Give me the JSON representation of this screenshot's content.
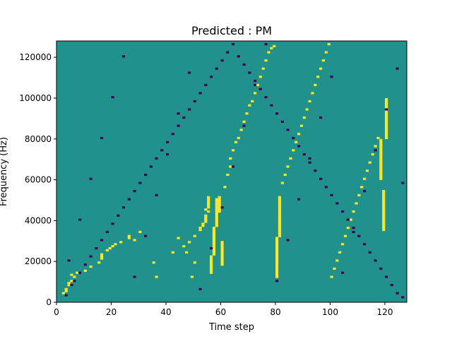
{
  "chart_data": {
    "type": "heatmap",
    "title": "Predicted : PM",
    "xlabel": "Time step",
    "ylabel": "Frequency (Hz)",
    "xlim": [
      0,
      128
    ],
    "ylim": [
      0,
      128000
    ],
    "x_ticks": [
      0,
      20,
      40,
      60,
      80,
      100,
      120
    ],
    "y_ticks": [
      0,
      20000,
      40000,
      60000,
      80000,
      100000,
      120000
    ],
    "x_tick_labels": [
      "0",
      "20",
      "40",
      "60",
      "80",
      "100",
      "120"
    ],
    "y_tick_labels": [
      "0",
      "20000",
      "40000",
      "60000",
      "80000",
      "100000",
      "120000"
    ],
    "grid_shape": [
      128,
      128
    ],
    "value_levels": [
      -1,
      0,
      1
    ],
    "colormap": "viridis",
    "colors": {
      "low": "#440154",
      "mid": "#21918c",
      "high": "#fde725"
    },
    "background_value": 0,
    "cells_high": [
      [
        2,
        4
      ],
      [
        3,
        5
      ],
      [
        3,
        6
      ],
      [
        4,
        8
      ],
      [
        4,
        9
      ],
      [
        5,
        10
      ],
      [
        6,
        12
      ],
      [
        5,
        13
      ],
      [
        7,
        14
      ],
      [
        10,
        15
      ],
      [
        12,
        17
      ],
      [
        15,
        19
      ],
      [
        16,
        21
      ],
      [
        16,
        22
      ],
      [
        16,
        23
      ],
      [
        18,
        25
      ],
      [
        19,
        26
      ],
      [
        20,
        27
      ],
      [
        21,
        28
      ],
      [
        23,
        29
      ],
      [
        26,
        31
      ],
      [
        26,
        32
      ],
      [
        30,
        34
      ],
      [
        28,
        30
      ],
      [
        35,
        19
      ],
      [
        36,
        12
      ],
      [
        42,
        24
      ],
      [
        44,
        31
      ],
      [
        46,
        27
      ],
      [
        47,
        24
      ],
      [
        48,
        29
      ],
      [
        49,
        12
      ],
      [
        50,
        19
      ],
      [
        50,
        32
      ],
      [
        52,
        35
      ],
      [
        52,
        36
      ],
      [
        53,
        37
      ],
      [
        53,
        38
      ],
      [
        54,
        39
      ],
      [
        54,
        40
      ],
      [
        54,
        41
      ],
      [
        54,
        42
      ],
      [
        54,
        45
      ],
      [
        55,
        44
      ],
      [
        55,
        46
      ],
      [
        55,
        47
      ],
      [
        55,
        48
      ],
      [
        55,
        49
      ],
      [
        55,
        50
      ],
      [
        55,
        51
      ],
      [
        56,
        14
      ],
      [
        56,
        15
      ],
      [
        56,
        16
      ],
      [
        56,
        17
      ],
      [
        56,
        18
      ],
      [
        56,
        19
      ],
      [
        56,
        20
      ],
      [
        56,
        21
      ],
      [
        56,
        22
      ],
      [
        57,
        23
      ],
      [
        57,
        24
      ],
      [
        57,
        25
      ],
      [
        57,
        26
      ],
      [
        57,
        27
      ],
      [
        57,
        28
      ],
      [
        57,
        29
      ],
      [
        57,
        30
      ],
      [
        57,
        31
      ],
      [
        57,
        32
      ],
      [
        57,
        33
      ],
      [
        57,
        34
      ],
      [
        57,
        35
      ],
      [
        57,
        36
      ],
      [
        58,
        37
      ],
      [
        58,
        38
      ],
      [
        58,
        39
      ],
      [
        58,
        40
      ],
      [
        58,
        41
      ],
      [
        58,
        42
      ],
      [
        58,
        43
      ],
      [
        58,
        44
      ],
      [
        58,
        45
      ],
      [
        58,
        46
      ],
      [
        58,
        47
      ],
      [
        58,
        48
      ],
      [
        58,
        49
      ],
      [
        58,
        50
      ],
      [
        59,
        44
      ],
      [
        59,
        45
      ],
      [
        59,
        46
      ],
      [
        59,
        47
      ],
      [
        59,
        48
      ],
      [
        59,
        49
      ],
      [
        59,
        50
      ],
      [
        59,
        51
      ],
      [
        60,
        18
      ],
      [
        60,
        19
      ],
      [
        60,
        20
      ],
      [
        60,
        21
      ],
      [
        60,
        22
      ],
      [
        60,
        23
      ],
      [
        60,
        24
      ],
      [
        60,
        25
      ],
      [
        60,
        26
      ],
      [
        60,
        27
      ],
      [
        60,
        28
      ],
      [
        60,
        29
      ],
      [
        61,
        56
      ],
      [
        62,
        62
      ],
      [
        63,
        66
      ],
      [
        63,
        70
      ],
      [
        64,
        74
      ],
      [
        65,
        78
      ],
      [
        66,
        80
      ],
      [
        67,
        84
      ],
      [
        68,
        88
      ],
      [
        69,
        92
      ],
      [
        70,
        96
      ],
      [
        71,
        98
      ],
      [
        72,
        102
      ],
      [
        73,
        106
      ],
      [
        74,
        110
      ],
      [
        75,
        114
      ],
      [
        76,
        118
      ],
      [
        77,
        122
      ],
      [
        78,
        124
      ],
      [
        79,
        125
      ],
      [
        80,
        12
      ],
      [
        80,
        13
      ],
      [
        80,
        14
      ],
      [
        80,
        15
      ],
      [
        80,
        16
      ],
      [
        80,
        17
      ],
      [
        80,
        18
      ],
      [
        80,
        19
      ],
      [
        80,
        20
      ],
      [
        80,
        21
      ],
      [
        80,
        22
      ],
      [
        80,
        23
      ],
      [
        80,
        24
      ],
      [
        80,
        25
      ],
      [
        80,
        26
      ],
      [
        80,
        27
      ],
      [
        80,
        28
      ],
      [
        80,
        29
      ],
      [
        80,
        30
      ],
      [
        80,
        31
      ],
      [
        81,
        32
      ],
      [
        81,
        33
      ],
      [
        81,
        34
      ],
      [
        81,
        35
      ],
      [
        81,
        36
      ],
      [
        81,
        37
      ],
      [
        81,
        38
      ],
      [
        81,
        39
      ],
      [
        81,
        40
      ],
      [
        81,
        41
      ],
      [
        81,
        42
      ],
      [
        81,
        43
      ],
      [
        81,
        44
      ],
      [
        81,
        45
      ],
      [
        81,
        46
      ],
      [
        81,
        47
      ],
      [
        81,
        48
      ],
      [
        81,
        49
      ],
      [
        81,
        50
      ],
      [
        81,
        51
      ],
      [
        82,
        58
      ],
      [
        83,
        62
      ],
      [
        84,
        66
      ],
      [
        85,
        70
      ],
      [
        86,
        74
      ],
      [
        87,
        78
      ],
      [
        88,
        82
      ],
      [
        89,
        86
      ],
      [
        90,
        90
      ],
      [
        91,
        94
      ],
      [
        92,
        98
      ],
      [
        93,
        102
      ],
      [
        94,
        106
      ],
      [
        95,
        110
      ],
      [
        96,
        114
      ],
      [
        97,
        118
      ],
      [
        98,
        122
      ],
      [
        99,
        126
      ],
      [
        100,
        12
      ],
      [
        101,
        16
      ],
      [
        102,
        20
      ],
      [
        103,
        24
      ],
      [
        104,
        28
      ],
      [
        105,
        32
      ],
      [
        106,
        36
      ],
      [
        107,
        40
      ],
      [
        108,
        44
      ],
      [
        109,
        48
      ],
      [
        110,
        52
      ],
      [
        111,
        56
      ],
      [
        112,
        60
      ],
      [
        113,
        64
      ],
      [
        114,
        68
      ],
      [
        115,
        72
      ],
      [
        116,
        76
      ],
      [
        117,
        80
      ],
      [
        118,
        60
      ],
      [
        118,
        61
      ],
      [
        118,
        62
      ],
      [
        118,
        63
      ],
      [
        118,
        64
      ],
      [
        118,
        65
      ],
      [
        118,
        66
      ],
      [
        118,
        67
      ],
      [
        118,
        68
      ],
      [
        118,
        69
      ],
      [
        118,
        70
      ],
      [
        118,
        71
      ],
      [
        118,
        72
      ],
      [
        118,
        73
      ],
      [
        118,
        74
      ],
      [
        118,
        75
      ],
      [
        118,
        76
      ],
      [
        118,
        77
      ],
      [
        118,
        78
      ],
      [
        118,
        79
      ],
      [
        119,
        35
      ],
      [
        119,
        36
      ],
      [
        119,
        37
      ],
      [
        119,
        38
      ],
      [
        119,
        39
      ],
      [
        119,
        40
      ],
      [
        119,
        41
      ],
      [
        119,
        42
      ],
      [
        119,
        43
      ],
      [
        119,
        44
      ],
      [
        119,
        45
      ],
      [
        119,
        46
      ],
      [
        119,
        47
      ],
      [
        119,
        48
      ],
      [
        119,
        49
      ],
      [
        119,
        50
      ],
      [
        119,
        51
      ],
      [
        119,
        52
      ],
      [
        119,
        53
      ],
      [
        119,
        54
      ],
      [
        120,
        80
      ],
      [
        120,
        81
      ],
      [
        120,
        82
      ],
      [
        120,
        83
      ],
      [
        120,
        84
      ],
      [
        120,
        85
      ],
      [
        120,
        86
      ],
      [
        120,
        87
      ],
      [
        120,
        88
      ],
      [
        120,
        89
      ],
      [
        120,
        90
      ],
      [
        120,
        91
      ],
      [
        120,
        92
      ],
      [
        120,
        93
      ],
      [
        120,
        94
      ],
      [
        120,
        95
      ],
      [
        120,
        96
      ],
      [
        120,
        97
      ],
      [
        120,
        98
      ],
      [
        120,
        99
      ]
    ],
    "cells_low": [
      [
        3,
        3
      ],
      [
        5,
        8
      ],
      [
        6,
        10
      ],
      [
        8,
        14
      ],
      [
        10,
        18
      ],
      [
        12,
        22
      ],
      [
        14,
        26
      ],
      [
        16,
        30
      ],
      [
        18,
        34
      ],
      [
        20,
        38
      ],
      [
        22,
        42
      ],
      [
        24,
        46
      ],
      [
        26,
        50
      ],
      [
        28,
        54
      ],
      [
        30,
        58
      ],
      [
        32,
        62
      ],
      [
        34,
        66
      ],
      [
        36,
        70
      ],
      [
        38,
        74
      ],
      [
        40,
        78
      ],
      [
        42,
        82
      ],
      [
        44,
        86
      ],
      [
        46,
        90
      ],
      [
        48,
        94
      ],
      [
        50,
        98
      ],
      [
        52,
        102
      ],
      [
        54,
        106
      ],
      [
        56,
        110
      ],
      [
        58,
        114
      ],
      [
        60,
        118
      ],
      [
        62,
        122
      ],
      [
        64,
        126
      ],
      [
        66,
        120
      ],
      [
        68,
        116
      ],
      [
        70,
        112
      ],
      [
        72,
        108
      ],
      [
        74,
        104
      ],
      [
        76,
        100
      ],
      [
        78,
        96
      ],
      [
        80,
        92
      ],
      [
        82,
        88
      ],
      [
        84,
        84
      ],
      [
        86,
        80
      ],
      [
        88,
        76
      ],
      [
        90,
        72
      ],
      [
        92,
        68
      ],
      [
        94,
        64
      ],
      [
        96,
        60
      ],
      [
        98,
        56
      ],
      [
        100,
        52
      ],
      [
        102,
        48
      ],
      [
        104,
        44
      ],
      [
        106,
        40
      ],
      [
        108,
        36
      ],
      [
        110,
        32
      ],
      [
        112,
        28
      ],
      [
        114,
        24
      ],
      [
        116,
        20
      ],
      [
        118,
        16
      ],
      [
        120,
        12
      ],
      [
        122,
        8
      ],
      [
        124,
        4
      ],
      [
        126,
        2
      ],
      [
        4,
        20
      ],
      [
        8,
        40
      ],
      [
        12,
        60
      ],
      [
        16,
        80
      ],
      [
        20,
        100
      ],
      [
        24,
        120
      ],
      [
        28,
        12
      ],
      [
        32,
        32
      ],
      [
        36,
        52
      ],
      [
        40,
        72
      ],
      [
        44,
        92
      ],
      [
        48,
        112
      ],
      [
        52,
        6
      ],
      [
        56,
        26
      ],
      [
        60,
        46
      ],
      [
        64,
        66
      ],
      [
        68,
        86
      ],
      [
        72,
        106
      ],
      [
        76,
        126
      ],
      [
        80,
        10
      ],
      [
        84,
        30
      ],
      [
        88,
        50
      ],
      [
        92,
        70
      ],
      [
        96,
        90
      ],
      [
        100,
        110
      ],
      [
        104,
        14
      ],
      [
        108,
        34
      ],
      [
        112,
        54
      ],
      [
        116,
        74
      ],
      [
        120,
        94
      ],
      [
        124,
        114
      ],
      [
        126,
        58
      ]
    ]
  }
}
